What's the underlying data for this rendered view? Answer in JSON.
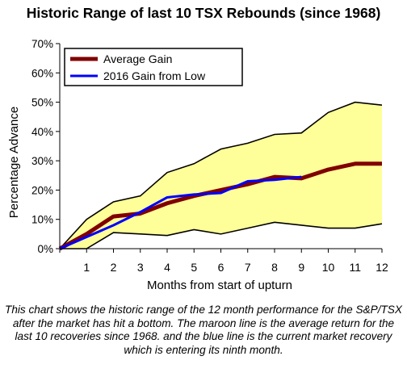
{
  "chart_data": {
    "type": "area",
    "title": "Historic Range of last 10 TSX Rebounds (since 1968)",
    "xlabel": "Months from start of upturn",
    "ylabel": "Percentage Advance",
    "x_ticks": [
      "1",
      "2",
      "3",
      "4",
      "5",
      "6",
      "7",
      "8",
      "9",
      "10",
      "11",
      "12"
    ],
    "y_ticks": [
      "0%",
      "10%",
      "20%",
      "30%",
      "40%",
      "50%",
      "60%",
      "70%"
    ],
    "xlim": [
      0,
      12
    ],
    "ylim": [
      0,
      70
    ],
    "grid": false,
    "legend_position": "top-left",
    "range_band": {
      "fill_color": "#ffff99",
      "outline_color": "#000000",
      "x": [
        0,
        1,
        2,
        3,
        4,
        5,
        6,
        7,
        8,
        9,
        10,
        11,
        12
      ],
      "upper": [
        0,
        10,
        16,
        18,
        26,
        29,
        34,
        36,
        39,
        39.5,
        46.5,
        50,
        49
      ],
      "lower": [
        0,
        0,
        5.5,
        5,
        4.5,
        6.5,
        5,
        7,
        9,
        8,
        7,
        7,
        8.5
      ]
    },
    "series": [
      {
        "name": "Average Gain",
        "color": "#800000",
        "x": [
          0,
          1,
          2,
          3,
          4,
          5,
          6,
          7,
          8,
          9,
          10,
          11,
          12
        ],
        "values": [
          0,
          5,
          11,
          12,
          15.5,
          18,
          20,
          22,
          24.5,
          24,
          27,
          29,
          29
        ]
      },
      {
        "name": "2016 Gain from Low",
        "color": "#0000ff",
        "x": [
          0,
          1,
          2,
          3,
          4,
          5,
          6,
          7,
          8,
          9
        ],
        "values": [
          0,
          4,
          8,
          12.5,
          17.5,
          18.5,
          19,
          23,
          23.5,
          24.5
        ]
      }
    ]
  },
  "caption": "This chart shows the historic range of the 12 month performance for the S&P/TSX after the market has hit a bottom. The maroon line is the average return for the last 10 recoveries since 1968. and the blue line is the current market recovery which is entering its ninth month."
}
